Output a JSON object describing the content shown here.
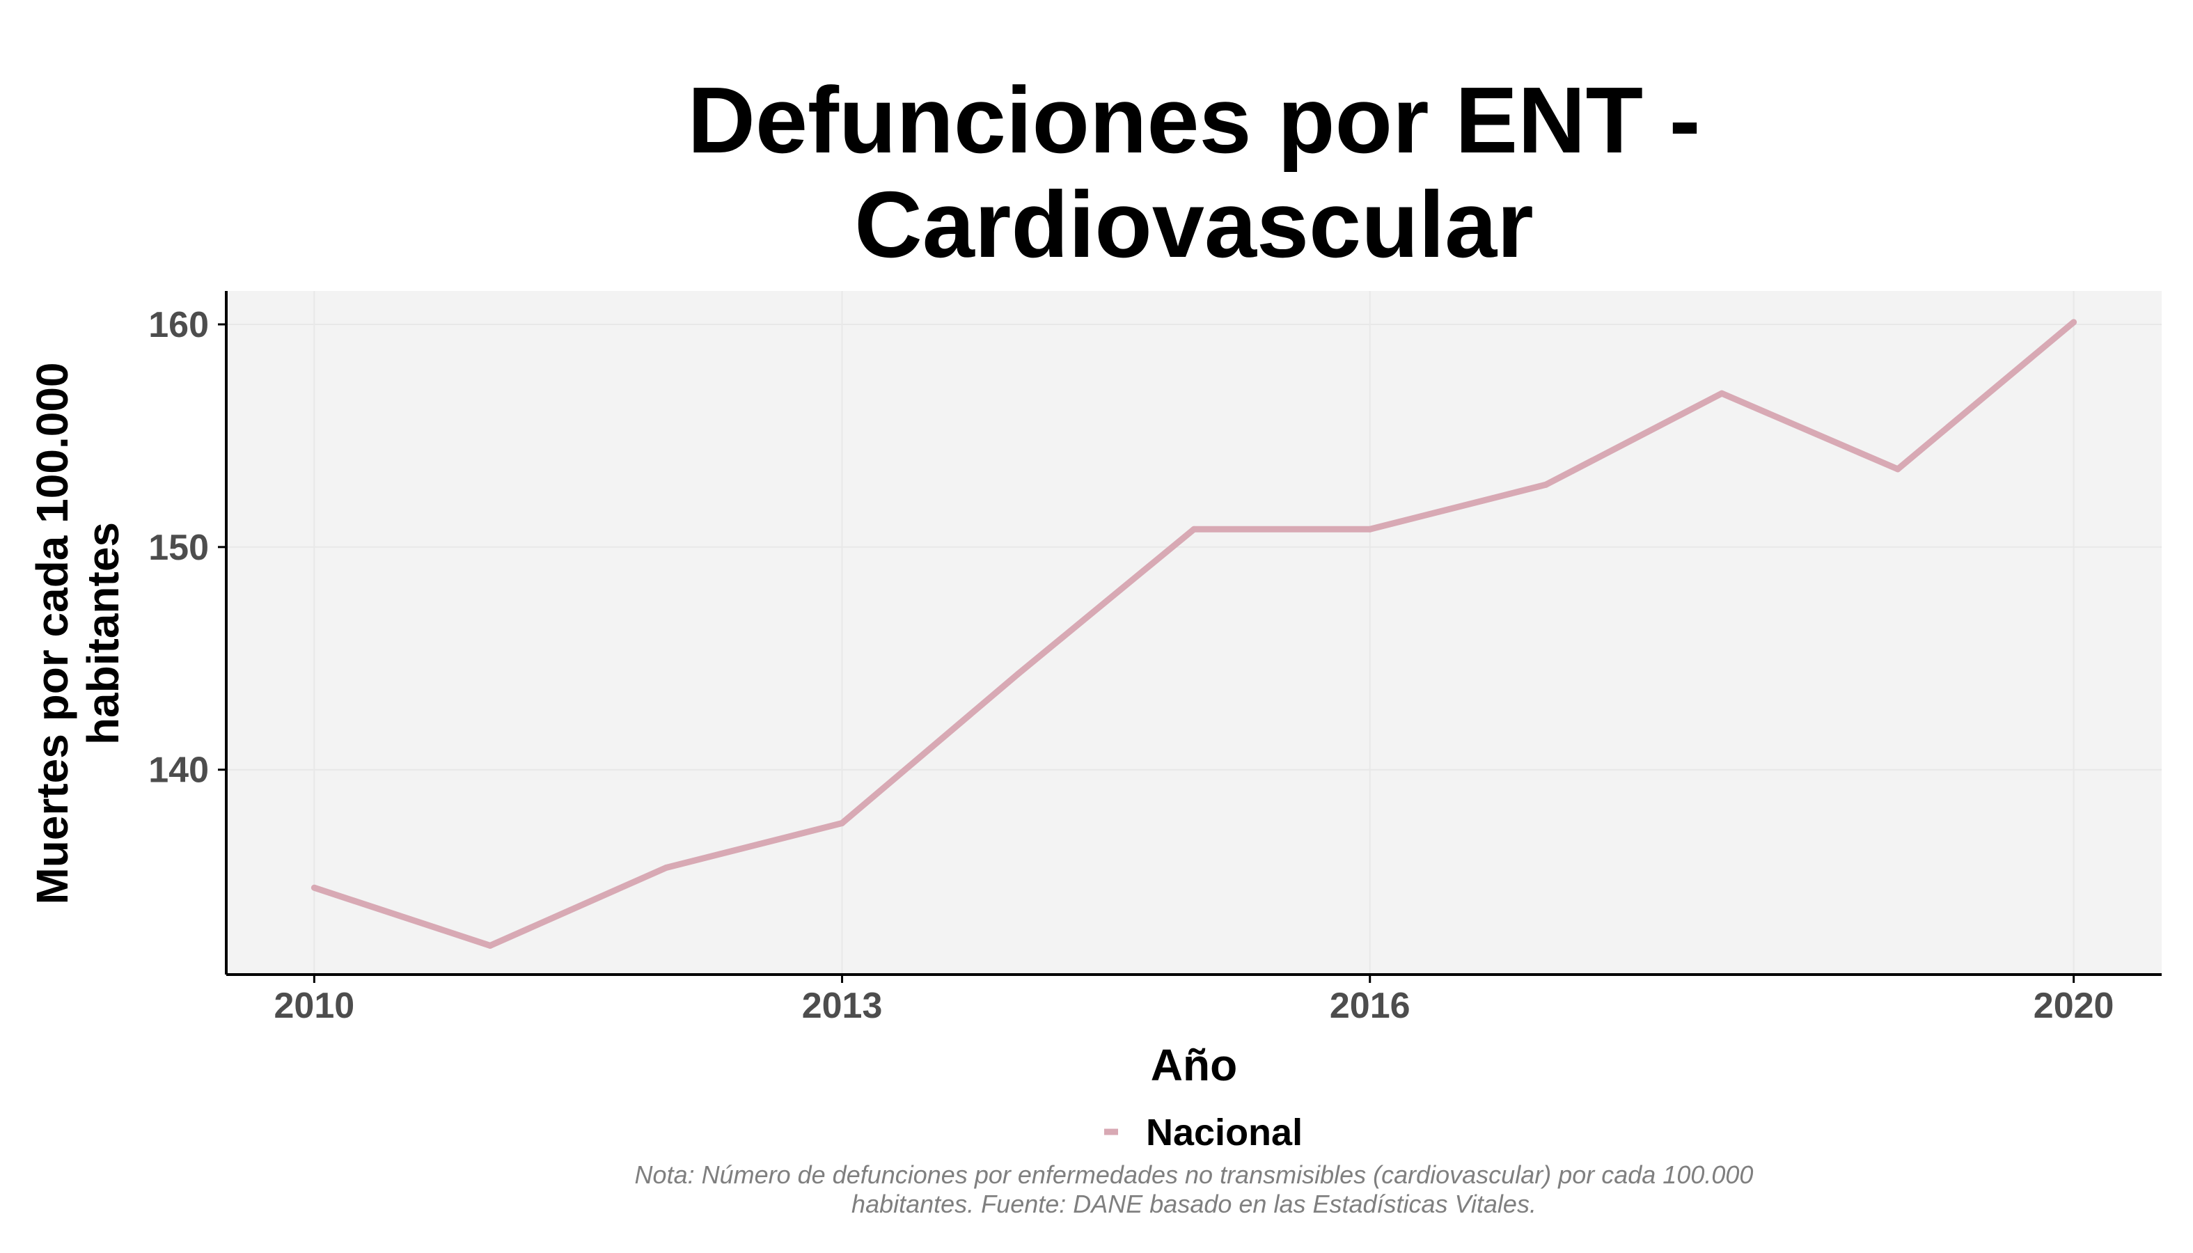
{
  "chart_data": {
    "type": "line",
    "title_lines": [
      "Defunciones por ENT -",
      "Cardiovascular"
    ],
    "xlabel": "Año",
    "ylabel_lines": [
      "Muertes por cada 100.000",
      "habitantes"
    ],
    "x": [
      2010,
      2011,
      2012,
      2013,
      2014,
      2015,
      2016,
      2017,
      2018,
      2019,
      2020
    ],
    "x_ticks": [
      "2010",
      "2013",
      "2016",
      "2020"
    ],
    "y_ticks": [
      "140",
      "150",
      "160"
    ],
    "xlim": [
      2009.5,
      2020.5
    ],
    "ylim": [
      130.8,
      161.5
    ],
    "grid": true,
    "legend_position": "bottom",
    "series": [
      {
        "name": "Nacional",
        "color": "#d8a9b4",
        "values": [
          134.7,
          132.1,
          135.6,
          137.6,
          144.3,
          150.8,
          150.8,
          152.8,
          156.9,
          153.5,
          160.1
        ]
      }
    ],
    "note_lines": [
      "Nota: Número de defunciones por enfermedades no transmisibles (cardiovascular) por cada 100.000",
      "habitantes. Fuente: DANE basado en las Estadísticas Vitales."
    ],
    "colors": {
      "panel_background": "#f3f3f3",
      "grid": "#e8e8e8",
      "axis": "#000000",
      "tick_text": "#4d4d4d",
      "note_text": "#7f7f7f"
    }
  }
}
